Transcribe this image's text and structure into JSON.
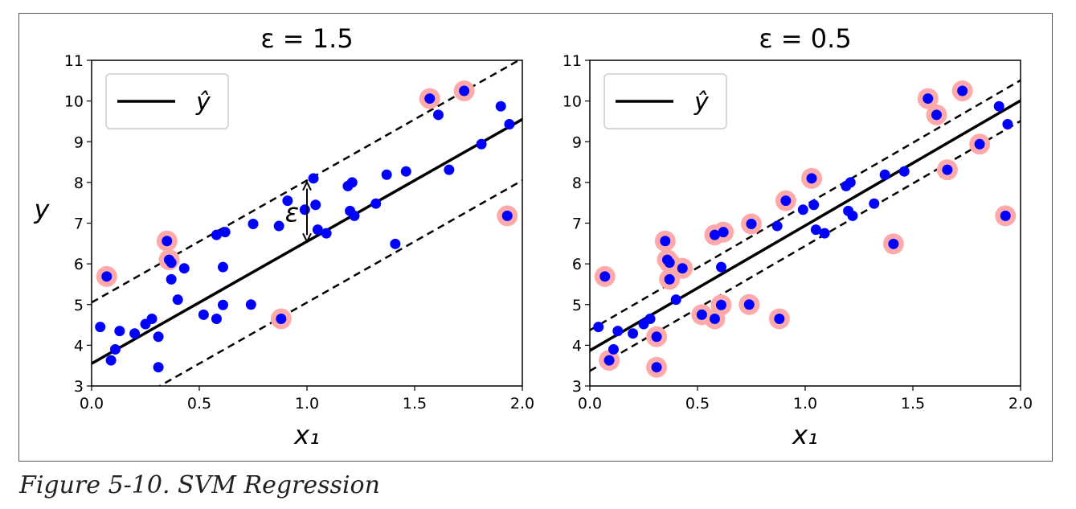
{
  "caption": "Figure 5-10. SVM Regression",
  "chart_data": [
    {
      "type": "scatter",
      "title": "ε = 1.5",
      "epsilon": 1.5,
      "xlabel": "x₁",
      "ylabel": "y",
      "xlim": [
        0,
        2
      ],
      "ylim": [
        3,
        11
      ],
      "xticks": [
        "0.0",
        "0.5",
        "1.0",
        "1.5",
        "2.0"
      ],
      "yticks": [
        "3",
        "4",
        "5",
        "6",
        "7",
        "8",
        "9",
        "10",
        "11"
      ],
      "legend": {
        "label": "ŷ",
        "position": "upper-left"
      },
      "regression_line": {
        "intercept": 3.55,
        "slope": 3.0
      },
      "margin_annotation": "ε",
      "point_color": "#0000ff",
      "support_vector_color": "#ffaaaa",
      "points": [
        {
          "x": 0.04,
          "y": 4.45,
          "sv": false
        },
        {
          "x": 0.07,
          "y": 5.69,
          "sv": true
        },
        {
          "x": 0.09,
          "y": 3.63,
          "sv": false
        },
        {
          "x": 0.11,
          "y": 3.9,
          "sv": false
        },
        {
          "x": 0.13,
          "y": 4.35,
          "sv": false
        },
        {
          "x": 0.2,
          "y": 4.29,
          "sv": false
        },
        {
          "x": 0.25,
          "y": 4.52,
          "sv": false
        },
        {
          "x": 0.28,
          "y": 4.65,
          "sv": false
        },
        {
          "x": 0.31,
          "y": 3.46,
          "sv": false
        },
        {
          "x": 0.31,
          "y": 4.21,
          "sv": false
        },
        {
          "x": 0.35,
          "y": 6.56,
          "sv": true
        },
        {
          "x": 0.36,
          "y": 6.1,
          "sv": true
        },
        {
          "x": 0.37,
          "y": 5.62,
          "sv": false
        },
        {
          "x": 0.37,
          "y": 6.03,
          "sv": false
        },
        {
          "x": 0.4,
          "y": 5.12,
          "sv": false
        },
        {
          "x": 0.43,
          "y": 5.89,
          "sv": false
        },
        {
          "x": 0.52,
          "y": 4.75,
          "sv": false
        },
        {
          "x": 0.58,
          "y": 4.65,
          "sv": false
        },
        {
          "x": 0.58,
          "y": 6.71,
          "sv": false
        },
        {
          "x": 0.61,
          "y": 4.99,
          "sv": false
        },
        {
          "x": 0.62,
          "y": 6.78,
          "sv": false
        },
        {
          "x": 0.61,
          "y": 5.92,
          "sv": false
        },
        {
          "x": 0.74,
          "y": 5.0,
          "sv": false
        },
        {
          "x": 0.75,
          "y": 6.98,
          "sv": false
        },
        {
          "x": 0.87,
          "y": 6.93,
          "sv": false
        },
        {
          "x": 0.88,
          "y": 4.65,
          "sv": true
        },
        {
          "x": 0.91,
          "y": 7.55,
          "sv": false
        },
        {
          "x": 0.99,
          "y": 7.33,
          "sv": false
        },
        {
          "x": 1.03,
          "y": 8.1,
          "sv": false
        },
        {
          "x": 1.04,
          "y": 7.45,
          "sv": false
        },
        {
          "x": 1.05,
          "y": 6.84,
          "sv": false
        },
        {
          "x": 1.09,
          "y": 6.75,
          "sv": false
        },
        {
          "x": 1.19,
          "y": 7.91,
          "sv": false
        },
        {
          "x": 1.2,
          "y": 7.3,
          "sv": false
        },
        {
          "x": 1.21,
          "y": 8.0,
          "sv": false
        },
        {
          "x": 1.22,
          "y": 7.18,
          "sv": false
        },
        {
          "x": 1.32,
          "y": 7.48,
          "sv": false
        },
        {
          "x": 1.37,
          "y": 8.19,
          "sv": false
        },
        {
          "x": 1.41,
          "y": 6.49,
          "sv": false
        },
        {
          "x": 1.46,
          "y": 8.27,
          "sv": false
        },
        {
          "x": 1.57,
          "y": 10.06,
          "sv": true
        },
        {
          "x": 1.61,
          "y": 9.66,
          "sv": false
        },
        {
          "x": 1.66,
          "y": 8.31,
          "sv": false
        },
        {
          "x": 1.73,
          "y": 10.25,
          "sv": true
        },
        {
          "x": 1.81,
          "y": 8.94,
          "sv": false
        },
        {
          "x": 1.9,
          "y": 9.87,
          "sv": false
        },
        {
          "x": 1.93,
          "y": 7.18,
          "sv": true
        },
        {
          "x": 1.94,
          "y": 9.43,
          "sv": false
        }
      ]
    },
    {
      "type": "scatter",
      "title": "ε = 0.5",
      "epsilon": 0.5,
      "xlabel": "x₁",
      "ylabel": "",
      "xlim": [
        0,
        2
      ],
      "ylim": [
        3,
        11
      ],
      "xticks": [
        "0.0",
        "0.5",
        "1.0",
        "1.5",
        "2.0"
      ],
      "yticks": [
        "3",
        "4",
        "5",
        "6",
        "7",
        "8",
        "9",
        "10",
        "11"
      ],
      "legend": {
        "label": "ŷ",
        "position": "upper-left"
      },
      "regression_line": {
        "intercept": 3.87,
        "slope": 3.07
      },
      "margin_annotation": "",
      "point_color": "#0000ff",
      "support_vector_color": "#ffaaaa",
      "points": [
        {
          "x": 0.04,
          "y": 4.45,
          "sv": false
        },
        {
          "x": 0.07,
          "y": 5.69,
          "sv": true
        },
        {
          "x": 0.09,
          "y": 3.63,
          "sv": true
        },
        {
          "x": 0.11,
          "y": 3.9,
          "sv": false
        },
        {
          "x": 0.13,
          "y": 4.35,
          "sv": false
        },
        {
          "x": 0.2,
          "y": 4.29,
          "sv": false
        },
        {
          "x": 0.25,
          "y": 4.52,
          "sv": false
        },
        {
          "x": 0.28,
          "y": 4.65,
          "sv": false
        },
        {
          "x": 0.31,
          "y": 3.46,
          "sv": true
        },
        {
          "x": 0.31,
          "y": 4.21,
          "sv": true
        },
        {
          "x": 0.35,
          "y": 6.56,
          "sv": true
        },
        {
          "x": 0.36,
          "y": 6.1,
          "sv": true
        },
        {
          "x": 0.37,
          "y": 5.62,
          "sv": true
        },
        {
          "x": 0.37,
          "y": 6.03,
          "sv": true
        },
        {
          "x": 0.4,
          "y": 5.12,
          "sv": false
        },
        {
          "x": 0.43,
          "y": 5.89,
          "sv": true
        },
        {
          "x": 0.52,
          "y": 4.75,
          "sv": true
        },
        {
          "x": 0.58,
          "y": 4.65,
          "sv": true
        },
        {
          "x": 0.58,
          "y": 6.71,
          "sv": true
        },
        {
          "x": 0.61,
          "y": 4.99,
          "sv": true
        },
        {
          "x": 0.62,
          "y": 6.78,
          "sv": true
        },
        {
          "x": 0.61,
          "y": 5.92,
          "sv": false
        },
        {
          "x": 0.74,
          "y": 5.0,
          "sv": true
        },
        {
          "x": 0.75,
          "y": 6.98,
          "sv": true
        },
        {
          "x": 0.87,
          "y": 6.93,
          "sv": false
        },
        {
          "x": 0.88,
          "y": 4.65,
          "sv": true
        },
        {
          "x": 0.91,
          "y": 7.55,
          "sv": true
        },
        {
          "x": 0.99,
          "y": 7.33,
          "sv": false
        },
        {
          "x": 1.03,
          "y": 8.1,
          "sv": true
        },
        {
          "x": 1.04,
          "y": 7.45,
          "sv": false
        },
        {
          "x": 1.05,
          "y": 6.84,
          "sv": false
        },
        {
          "x": 1.09,
          "y": 6.75,
          "sv": false
        },
        {
          "x": 1.19,
          "y": 7.91,
          "sv": false
        },
        {
          "x": 1.2,
          "y": 7.3,
          "sv": false
        },
        {
          "x": 1.21,
          "y": 8.0,
          "sv": false
        },
        {
          "x": 1.22,
          "y": 7.18,
          "sv": false
        },
        {
          "x": 1.32,
          "y": 7.48,
          "sv": false
        },
        {
          "x": 1.37,
          "y": 8.19,
          "sv": false
        },
        {
          "x": 1.41,
          "y": 6.49,
          "sv": true
        },
        {
          "x": 1.46,
          "y": 8.27,
          "sv": false
        },
        {
          "x": 1.57,
          "y": 10.06,
          "sv": true
        },
        {
          "x": 1.61,
          "y": 9.66,
          "sv": true
        },
        {
          "x": 1.66,
          "y": 8.31,
          "sv": true
        },
        {
          "x": 1.73,
          "y": 10.25,
          "sv": true
        },
        {
          "x": 1.81,
          "y": 8.94,
          "sv": true
        },
        {
          "x": 1.9,
          "y": 9.87,
          "sv": false
        },
        {
          "x": 1.93,
          "y": 7.18,
          "sv": true
        },
        {
          "x": 1.94,
          "y": 9.43,
          "sv": false
        }
      ]
    }
  ]
}
